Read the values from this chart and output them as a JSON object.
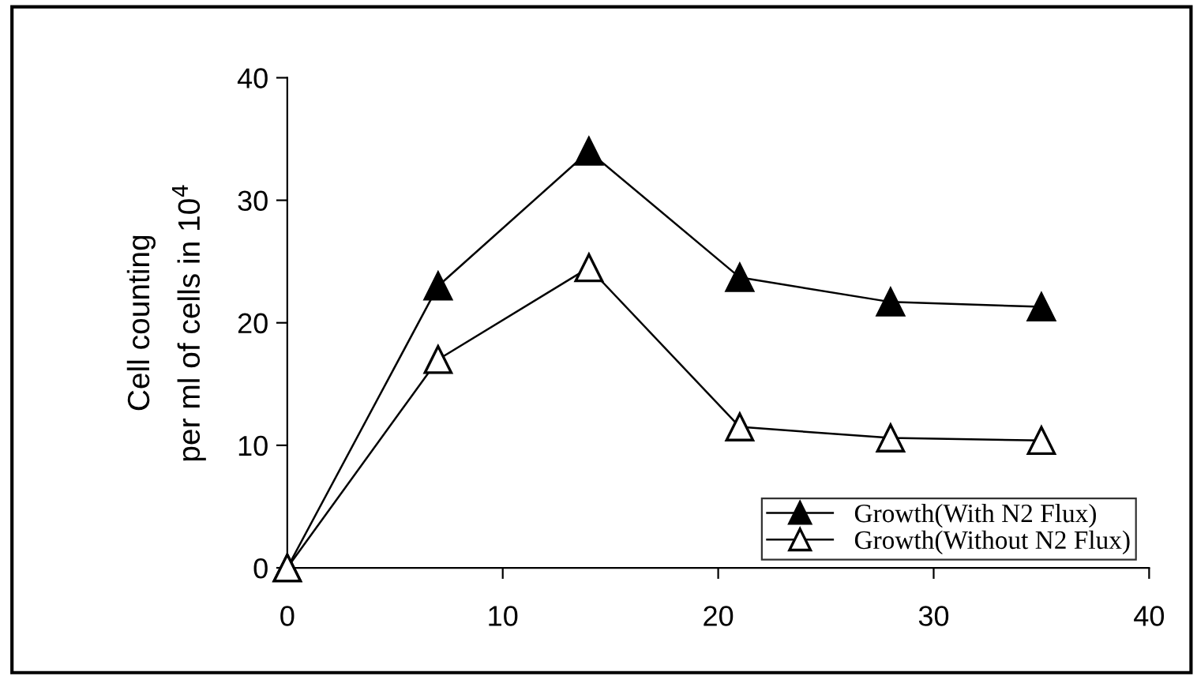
{
  "chart_data": {
    "type": "line",
    "ylabel": "Cell counting\nper ml of cells in 10$^{4}$",
    "x": [
      0,
      7,
      14,
      21,
      28,
      35
    ],
    "series": [
      {
        "name": "Growth(With N2 Flux)",
        "color": "#000000",
        "marker": "triangle",
        "values": [
          0,
          23,
          34,
          23.7,
          21.7,
          21.3
        ]
      },
      {
        "name": "Growth(Without N2 Flux)",
        "color": "#000000",
        "marker": "triangle",
        "values": [
          0,
          17,
          24.5,
          11.5,
          10.6,
          10.4
        ]
      }
    ],
    "xlim": [
      0,
      40
    ],
    "xticks": [
      0,
      10,
      20,
      30,
      40
    ],
    "ylim": [
      0,
      40
    ],
    "yticks": [
      0,
      10,
      20,
      30,
      40
    ],
    "grid": false,
    "legend": "bottom right",
    "line_style": "solid"
  }
}
